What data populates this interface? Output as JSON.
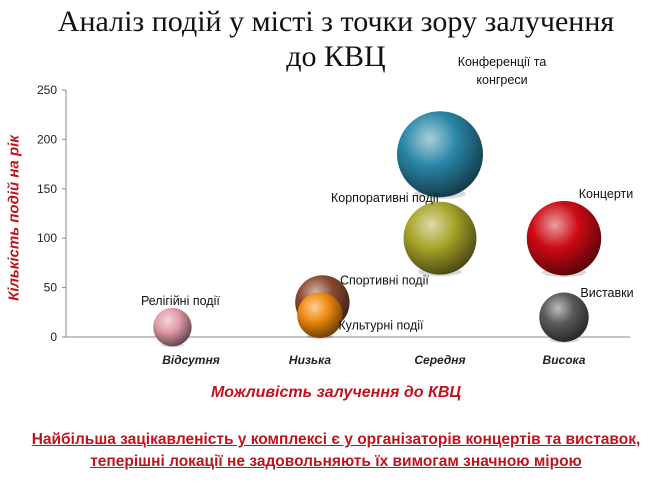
{
  "title_lines": [
    "Аналіз подій у місті з точки зору залучення",
    "до КВЦ"
  ],
  "footer_lines": [
    "Найбільша зацікавленість у комплексі є у організаторів концертів та виставок,",
    "теперішні локації не задовольняють їх вимогам значною мірою"
  ],
  "chart_data": {
    "type": "bubble",
    "title": "Аналіз подій у місті з точки зору залучення до КВЦ",
    "xlabel": "Можливість залучення до КВЦ",
    "ylabel": "Кількість подій на рік",
    "categories": [
      "Відсутня",
      "Низька",
      "Середня",
      "Висока"
    ],
    "ylim": [
      0,
      250
    ],
    "yticks": [
      0,
      50,
      100,
      150,
      200,
      250
    ],
    "grid": false,
    "legend": "none",
    "points": [
      {
        "label": "Релігійні події",
        "category": "Відсутня",
        "x_offset": -0.15,
        "y": 10,
        "size": 0.2,
        "color": "#e09aa8"
      },
      {
        "label": "Спортивні події",
        "category": "Низька",
        "x_offset": 0.1,
        "y": 35,
        "size": 0.4,
        "color": "#8a4a2e"
      },
      {
        "label": "Культурні події",
        "category": "Низька",
        "x_offset": 0.08,
        "y": 22,
        "size": 0.28,
        "color": "#f08a10"
      },
      {
        "label": "Конференції та конгреси",
        "category": "Середня",
        "x_offset": 0.0,
        "y": 185,
        "size": 1.0,
        "color": "#2a86a6"
      },
      {
        "label": "Корпоративні події",
        "category": "Середня",
        "x_offset": 0.0,
        "y": 100,
        "size": 0.72,
        "color": "#a8a42a"
      },
      {
        "label": "Концерти",
        "category": "Висока",
        "x_offset": 0.0,
        "y": 100,
        "size": 0.75,
        "color": "#cc0a14"
      },
      {
        "label": "Виставки",
        "category": "Висока",
        "x_offset": 0.0,
        "y": 20,
        "size": 0.33,
        "color": "#5a5a5a"
      }
    ]
  }
}
